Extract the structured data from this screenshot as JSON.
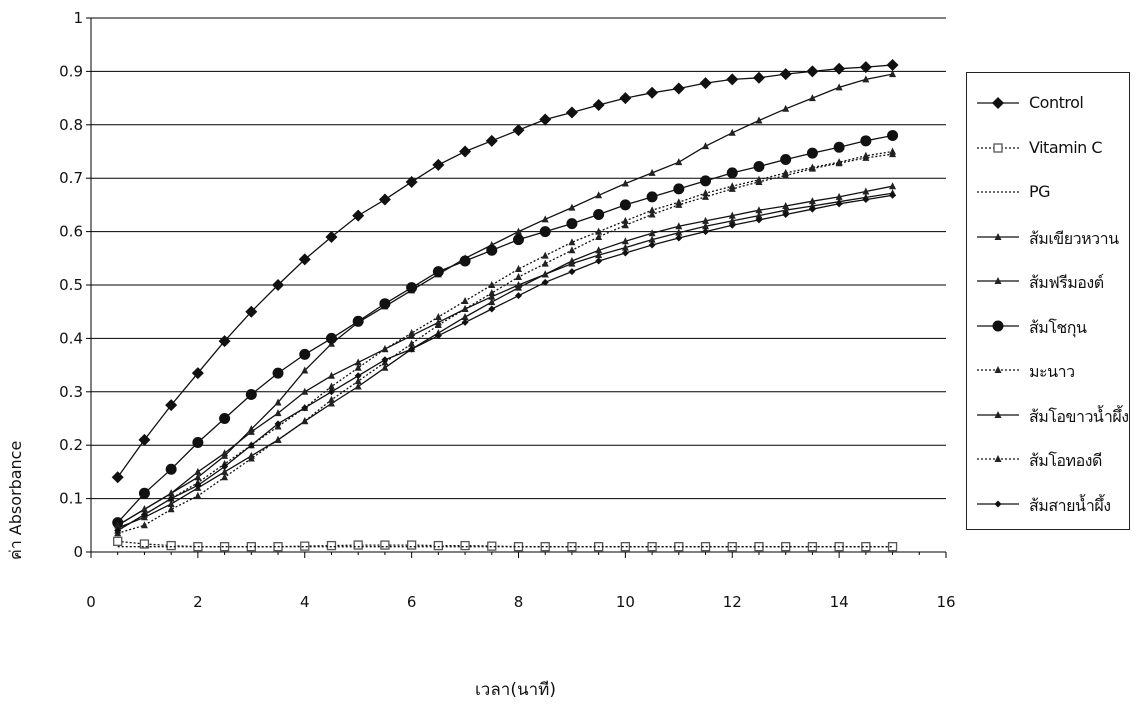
{
  "chart_data": {
    "type": "line",
    "xlabel": "เวลา(นาที)",
    "ylabel": "ค่า Absorbance",
    "xlim": [
      0,
      16
    ],
    "ylim": [
      0,
      1
    ],
    "x_ticks": [
      "0",
      "2",
      "4",
      "6",
      "8",
      "10",
      "12",
      "14",
      "16"
    ],
    "y_ticks": [
      "0",
      "0.1",
      "0.2",
      "0.3",
      "0.4",
      "0.5",
      "0.6",
      "0.7",
      "0.8",
      "0.9",
      "1"
    ],
    "grid": "horizontal",
    "legend_position": "right",
    "x": [
      0.5,
      1,
      1.5,
      2,
      2.5,
      3,
      3.5,
      4,
      4.5,
      5,
      5.5,
      6,
      6.5,
      7,
      7.5,
      8,
      8.5,
      9,
      9.5,
      10,
      10.5,
      11,
      11.5,
      12,
      12.5,
      13,
      13.5,
      14,
      14.5,
      15
    ],
    "series": [
      {
        "name": "Control",
        "marker": "diamond",
        "dash": "",
        "values": [
          0.14,
          0.21,
          0.275,
          0.335,
          0.395,
          0.45,
          0.5,
          0.548,
          0.59,
          0.63,
          0.66,
          0.693,
          0.725,
          0.75,
          0.77,
          0.79,
          0.81,
          0.823,
          0.837,
          0.85,
          0.86,
          0.868,
          0.878,
          0.885,
          0.888,
          0.895,
          0.9,
          0.905,
          0.908,
          0.912
        ]
      },
      {
        "name": "Vitamin C",
        "marker": "square-open",
        "dash": "2,2",
        "values": [
          0.02,
          0.015,
          0.012,
          0.01,
          0.01,
          0.01,
          0.01,
          0.011,
          0.012,
          0.013,
          0.013,
          0.013,
          0.012,
          0.012,
          0.011,
          0.01,
          0.01,
          0.01,
          0.01,
          0.01,
          0.01,
          0.01,
          0.01,
          0.01,
          0.01,
          0.01,
          0.01,
          0.01,
          0.01,
          0.01
        ]
      },
      {
        "name": "PG",
        "marker": "none",
        "dash": "2,2",
        "values": [
          0.01,
          0.01,
          0.01,
          0.01,
          0.01,
          0.01,
          0.01,
          0.01,
          0.01,
          0.01,
          0.01,
          0.01,
          0.01,
          0.01,
          0.01,
          0.01,
          0.01,
          0.01,
          0.01,
          0.01,
          0.01,
          0.01,
          0.01,
          0.01,
          0.01,
          0.01,
          0.01,
          0.01,
          0.01,
          0.01
        ]
      },
      {
        "name": "ส้มเขียวหวาน",
        "marker": "triangle",
        "dash": "",
        "values": [
          0.045,
          0.065,
          0.09,
          0.12,
          0.15,
          0.18,
          0.21,
          0.245,
          0.278,
          0.31,
          0.345,
          0.38,
          0.41,
          0.44,
          0.468,
          0.495,
          0.52,
          0.545,
          0.565,
          0.582,
          0.597,
          0.61,
          0.62,
          0.63,
          0.64,
          0.648,
          0.657,
          0.665,
          0.675,
          0.685
        ]
      },
      {
        "name": "ส้มฟรีมองต์",
        "marker": "triangle",
        "dash": "",
        "values": [
          0.05,
          0.08,
          0.11,
          0.14,
          0.18,
          0.23,
          0.28,
          0.34,
          0.39,
          0.43,
          0.46,
          0.49,
          0.52,
          0.55,
          0.575,
          0.6,
          0.623,
          0.645,
          0.668,
          0.69,
          0.71,
          0.73,
          0.76,
          0.785,
          0.808,
          0.83,
          0.85,
          0.87,
          0.885,
          0.895
        ]
      },
      {
        "name": "ส้มโชกุน",
        "marker": "circle",
        "dash": "",
        "values": [
          0.055,
          0.11,
          0.155,
          0.205,
          0.25,
          0.295,
          0.335,
          0.37,
          0.4,
          0.432,
          0.465,
          0.495,
          0.525,
          0.545,
          0.565,
          0.585,
          0.6,
          0.615,
          0.632,
          0.65,
          0.665,
          0.68,
          0.695,
          0.71,
          0.722,
          0.735,
          0.747,
          0.758,
          0.77,
          0.78
        ]
      },
      {
        "name": "มะนาว",
        "marker": "triangle",
        "dash": "2,2",
        "values": [
          0.035,
          0.05,
          0.08,
          0.105,
          0.14,
          0.175,
          0.21,
          0.245,
          0.285,
          0.32,
          0.355,
          0.39,
          0.425,
          0.455,
          0.485,
          0.515,
          0.54,
          0.565,
          0.59,
          0.612,
          0.632,
          0.65,
          0.665,
          0.68,
          0.693,
          0.705,
          0.718,
          0.728,
          0.738,
          0.745
        ]
      },
      {
        "name": "ส้มโอขาวน้ำผึ้ง",
        "marker": "triangle",
        "dash": "",
        "values": [
          0.05,
          0.08,
          0.11,
          0.15,
          0.185,
          0.225,
          0.26,
          0.3,
          0.33,
          0.355,
          0.38,
          0.405,
          0.43,
          0.455,
          0.478,
          0.5,
          0.52,
          0.54,
          0.556,
          0.57,
          0.585,
          0.598,
          0.61,
          0.62,
          0.63,
          0.64,
          0.648,
          0.656,
          0.664,
          0.672
        ]
      },
      {
        "name": "ส้มโอทองดี",
        "marker": "triangle",
        "dash": "2,2",
        "values": [
          0.04,
          0.07,
          0.1,
          0.13,
          0.165,
          0.2,
          0.235,
          0.27,
          0.31,
          0.345,
          0.38,
          0.41,
          0.44,
          0.47,
          0.5,
          0.53,
          0.555,
          0.58,
          0.6,
          0.62,
          0.64,
          0.655,
          0.672,
          0.685,
          0.697,
          0.71,
          0.72,
          0.73,
          0.742,
          0.75
        ]
      },
      {
        "name": "ส้มสายน้ำผึ้ง",
        "marker": "diamond-small",
        "dash": "",
        "values": [
          0.04,
          0.07,
          0.1,
          0.125,
          0.16,
          0.2,
          0.24,
          0.27,
          0.3,
          0.33,
          0.36,
          0.38,
          0.405,
          0.43,
          0.455,
          0.48,
          0.505,
          0.525,
          0.545,
          0.56,
          0.575,
          0.588,
          0.6,
          0.612,
          0.622,
          0.632,
          0.642,
          0.652,
          0.66,
          0.668
        ]
      }
    ]
  }
}
